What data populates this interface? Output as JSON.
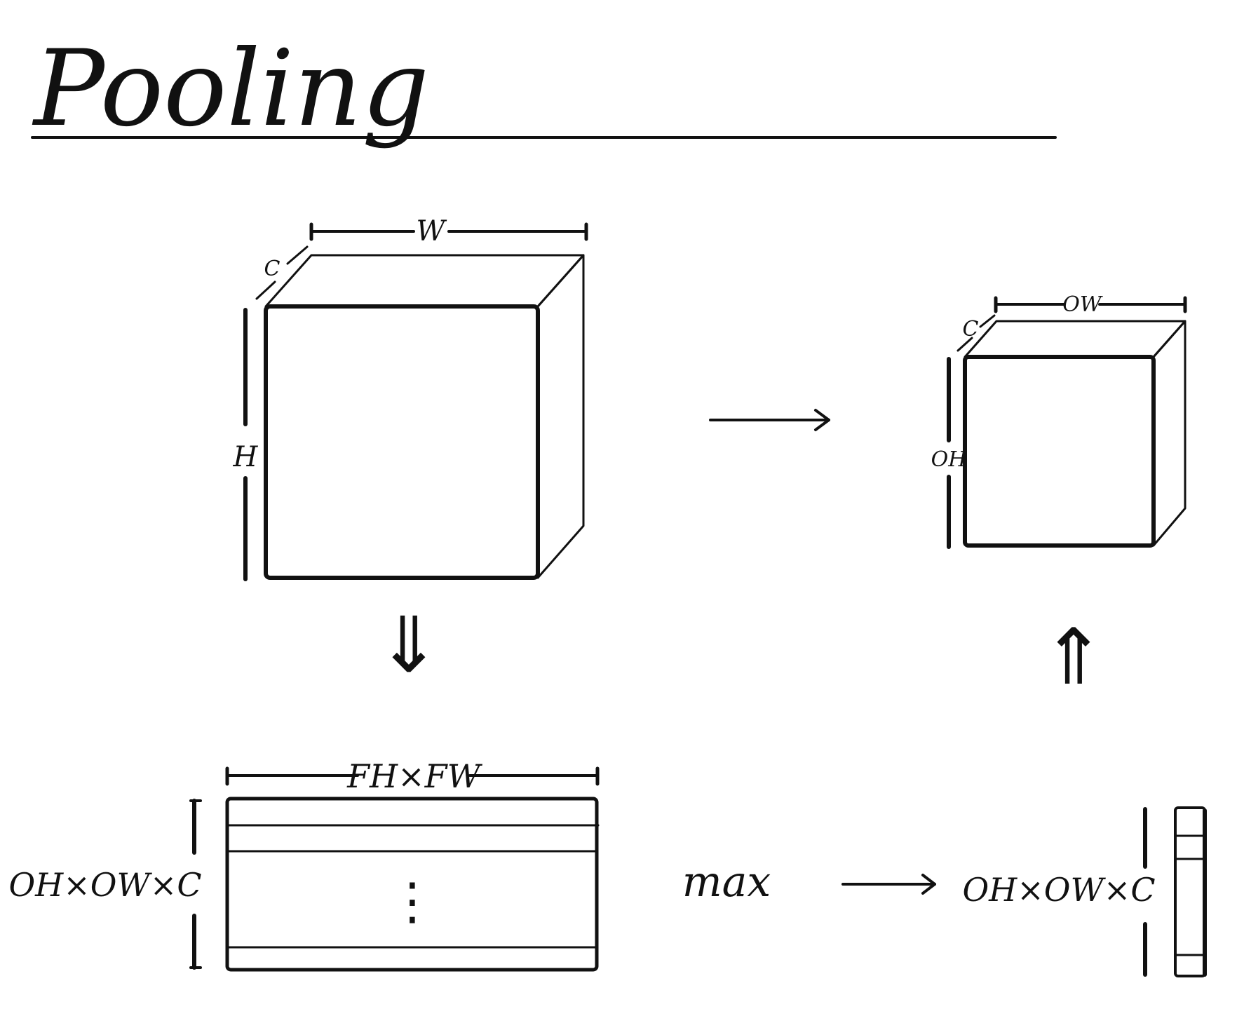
{
  "title": "Pooling",
  "input_box": {
    "w_label": "W",
    "c_label": "C",
    "h_label": "H"
  },
  "output_box": {
    "w_label": "OW",
    "c_label": "C",
    "h_label": "OH"
  },
  "matrix": {
    "width_label": "FH×FW",
    "rows_label": "OH×OW×C",
    "ellipsis": "⋮"
  },
  "operation": "max",
  "result_vector": {
    "rows_label": "OH×OW×C"
  },
  "arrows": {
    "down": "⇓",
    "up": "⇑"
  }
}
